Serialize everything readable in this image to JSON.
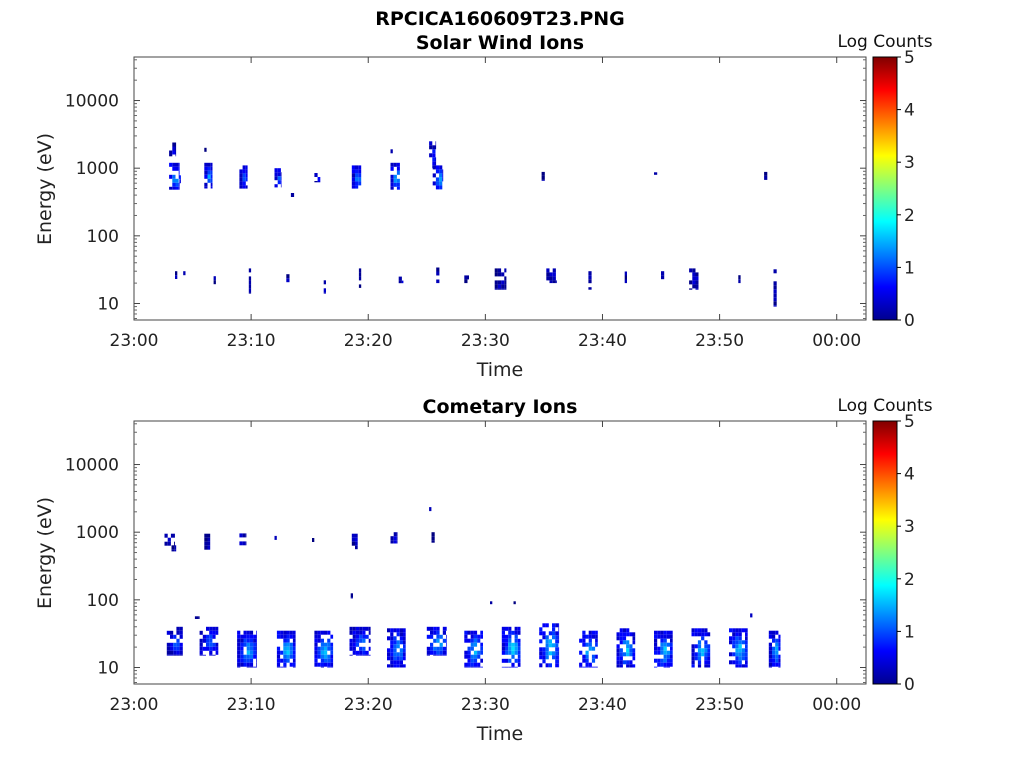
{
  "figure_title": "RPCICA160609T23.PNG",
  "chart_data": [
    {
      "type": "heatmap",
      "title": "Solar Wind Ions",
      "xlabel": "Time",
      "ylabel": "Energy (eV)",
      "yscale": "log",
      "xticks": [
        "23:00",
        "23:10",
        "23:20",
        "23:30",
        "23:40",
        "23:50",
        "00:00"
      ],
      "yticks": [
        "10",
        "100",
        "1000",
        "10000"
      ],
      "colorbar": {
        "label": "Log Counts",
        "range": [
          0,
          5
        ],
        "ticks": [
          "0",
          "1",
          "2",
          "3",
          "4",
          "5"
        ],
        "colormap": "jet"
      },
      "patches": [
        {
          "t": 3.0,
          "dt": 0.6,
          "e1": 1500,
          "e2": 2400,
          "v": 0.3
        },
        {
          "t": 3.0,
          "dt": 0.9,
          "e1": 480,
          "e2": 1200,
          "v": 1.3
        },
        {
          "t": 3.6,
          "dt": 0.4,
          "e1": 600,
          "e2": 900,
          "v": 0.8
        },
        {
          "t": 6.0,
          "dt": 0.7,
          "e1": 500,
          "e2": 1200,
          "v": 1.2
        },
        {
          "t": 6.0,
          "dt": 0.2,
          "e1": 1700,
          "e2": 2000,
          "v": 0.2
        },
        {
          "t": 9.0,
          "dt": 0.7,
          "e1": 500,
          "e2": 1100,
          "v": 1.0
        },
        {
          "t": 12.0,
          "dt": 0.6,
          "e1": 520,
          "e2": 1000,
          "v": 0.9
        },
        {
          "t": 13.4,
          "dt": 0.3,
          "e1": 370,
          "e2": 430,
          "v": 0.2
        },
        {
          "t": 15.4,
          "dt": 0.5,
          "e1": 620,
          "e2": 850,
          "v": 0.4
        },
        {
          "t": 18.6,
          "dt": 0.8,
          "e1": 500,
          "e2": 1100,
          "v": 1.1
        },
        {
          "t": 21.9,
          "dt": 0.8,
          "e1": 480,
          "e2": 1200,
          "v": 1.3
        },
        {
          "t": 21.9,
          "dt": 0.2,
          "e1": 1600,
          "e2": 1900,
          "v": 0.2
        },
        {
          "t": 25.2,
          "dt": 0.6,
          "e1": 1000,
          "e2": 2500,
          "v": 0.6
        },
        {
          "t": 25.5,
          "dt": 0.9,
          "e1": 480,
          "e2": 1100,
          "v": 1.2
        },
        {
          "t": 34.8,
          "dt": 0.3,
          "e1": 650,
          "e2": 880,
          "v": 0.2
        },
        {
          "t": 44.4,
          "dt": 0.4,
          "e1": 800,
          "e2": 870,
          "v": 0.2
        },
        {
          "t": 53.8,
          "dt": 0.3,
          "e1": 650,
          "e2": 880,
          "v": 0.2
        },
        {
          "t": 3.5,
          "dt": 0.2,
          "e1": 23,
          "e2": 30,
          "v": 0.3
        },
        {
          "t": 4.2,
          "dt": 0.2,
          "e1": 23,
          "e2": 30,
          "v": 0.3
        },
        {
          "t": 6.8,
          "dt": 0.2,
          "e1": 15,
          "e2": 29,
          "v": 0.3
        },
        {
          "t": 9.8,
          "dt": 0.2,
          "e1": 14,
          "e2": 33,
          "v": 0.3
        },
        {
          "t": 13.0,
          "dt": 0.3,
          "e1": 20,
          "e2": 31,
          "v": 0.3
        },
        {
          "t": 16.2,
          "dt": 0.2,
          "e1": 14,
          "e2": 22,
          "v": 0.3
        },
        {
          "t": 19.2,
          "dt": 0.2,
          "e1": 17,
          "e2": 33,
          "v": 0.3
        },
        {
          "t": 22.6,
          "dt": 0.4,
          "e1": 20,
          "e2": 25,
          "v": 0.3
        },
        {
          "t": 25.8,
          "dt": 0.3,
          "e1": 20,
          "e2": 34,
          "v": 0.3
        },
        {
          "t": 28.2,
          "dt": 0.4,
          "e1": 20,
          "e2": 26,
          "v": 0.3
        },
        {
          "t": 30.8,
          "dt": 1.0,
          "e1": 16,
          "e2": 33,
          "v": 0.3
        },
        {
          "t": 35.2,
          "dt": 0.9,
          "e1": 20,
          "e2": 33,
          "v": 0.3
        },
        {
          "t": 38.8,
          "dt": 0.3,
          "e1": 16,
          "e2": 30,
          "v": 0.3
        },
        {
          "t": 41.9,
          "dt": 0.2,
          "e1": 20,
          "e2": 34,
          "v": 0.3
        },
        {
          "t": 45.0,
          "dt": 0.3,
          "e1": 20,
          "e2": 30,
          "v": 0.3
        },
        {
          "t": 47.4,
          "dt": 0.8,
          "e1": 16,
          "e2": 33,
          "v": 0.3
        },
        {
          "t": 51.6,
          "dt": 0.2,
          "e1": 20,
          "e2": 30,
          "v": 0.3
        },
        {
          "t": 54.6,
          "dt": 0.3,
          "e1": 9,
          "e2": 32,
          "v": 0.3
        }
      ]
    },
    {
      "type": "heatmap",
      "title": "Cometary Ions",
      "xlabel": "Time",
      "ylabel": "Energy (eV)",
      "yscale": "log",
      "xticks": [
        "23:00",
        "23:10",
        "23:20",
        "23:30",
        "23:40",
        "23:50",
        "00:00"
      ],
      "yticks": [
        "10",
        "100",
        "1000",
        "10000"
      ],
      "colorbar": {
        "label": "Log Counts",
        "range": [
          0,
          5
        ],
        "ticks": [
          "0",
          "1",
          "2",
          "3",
          "4",
          "5"
        ],
        "colormap": "jet"
      },
      "patches": [
        {
          "t": 2.6,
          "dt": 0.9,
          "e1": 630,
          "e2": 950,
          "v": 0.4
        },
        {
          "t": 3.2,
          "dt": 0.4,
          "e1": 520,
          "e2": 640,
          "v": 0.2
        },
        {
          "t": 6.0,
          "dt": 0.5,
          "e1": 550,
          "e2": 950,
          "v": 0.3
        },
        {
          "t": 9.0,
          "dt": 0.6,
          "e1": 640,
          "e2": 960,
          "v": 0.5
        },
        {
          "t": 12.0,
          "dt": 0.2,
          "e1": 600,
          "e2": 880,
          "v": 0.2
        },
        {
          "t": 15.2,
          "dt": 0.2,
          "e1": 650,
          "e2": 820,
          "v": 0.2
        },
        {
          "t": 18.6,
          "dt": 0.5,
          "e1": 560,
          "e2": 950,
          "v": 0.4
        },
        {
          "t": 21.9,
          "dt": 0.6,
          "e1": 680,
          "e2": 1000,
          "v": 0.4
        },
        {
          "t": 25.2,
          "dt": 0.2,
          "e1": 2050,
          "e2": 2350,
          "v": 0.2
        },
        {
          "t": 25.4,
          "dt": 0.3,
          "e1": 700,
          "e2": 1000,
          "v": 0.2
        },
        {
          "t": 18.5,
          "dt": 0.2,
          "e1": 105,
          "e2": 125,
          "v": 0.2
        },
        {
          "t": 30.4,
          "dt": 0.2,
          "e1": 86,
          "e2": 95,
          "v": 0.2
        },
        {
          "t": 32.4,
          "dt": 0.2,
          "e1": 86,
          "e2": 95,
          "v": 0.2
        },
        {
          "t": 5.2,
          "dt": 0.4,
          "e1": 52,
          "e2": 57,
          "v": 0.2
        },
        {
          "t": 52.6,
          "dt": 0.2,
          "e1": 55,
          "e2": 63,
          "v": 0.3
        },
        {
          "t": 2.8,
          "dt": 1.4,
          "e1": 15,
          "e2": 40,
          "v": 0.8
        },
        {
          "t": 5.6,
          "dt": 1.6,
          "e1": 15,
          "e2": 40,
          "v": 0.9
        },
        {
          "t": 8.8,
          "dt": 1.7,
          "e1": 10,
          "e2": 35,
          "v": 1.2
        },
        {
          "t": 12.2,
          "dt": 1.6,
          "e1": 10,
          "e2": 35,
          "v": 1.3
        },
        {
          "t": 15.4,
          "dt": 1.6,
          "e1": 10,
          "e2": 35,
          "v": 1.3
        },
        {
          "t": 18.4,
          "dt": 1.8,
          "e1": 15,
          "e2": 40,
          "v": 1.0
        },
        {
          "t": 21.6,
          "dt": 1.6,
          "e1": 10,
          "e2": 38,
          "v": 1.1
        },
        {
          "t": 25.0,
          "dt": 1.7,
          "e1": 15,
          "e2": 40,
          "v": 1.3
        },
        {
          "t": 28.2,
          "dt": 1.6,
          "e1": 10,
          "e2": 35,
          "v": 1.3
        },
        {
          "t": 31.4,
          "dt": 1.6,
          "e1": 10,
          "e2": 40,
          "v": 1.4
        },
        {
          "t": 34.6,
          "dt": 1.7,
          "e1": 10,
          "e2": 45,
          "v": 1.4
        },
        {
          "t": 38.0,
          "dt": 1.6,
          "e1": 10,
          "e2": 35,
          "v": 1.3
        },
        {
          "t": 41.2,
          "dt": 1.6,
          "e1": 10,
          "e2": 38,
          "v": 1.3
        },
        {
          "t": 44.4,
          "dt": 1.6,
          "e1": 10,
          "e2": 35,
          "v": 1.3
        },
        {
          "t": 47.6,
          "dt": 1.6,
          "e1": 10,
          "e2": 38,
          "v": 1.3
        },
        {
          "t": 50.8,
          "dt": 1.6,
          "e1": 10,
          "e2": 38,
          "v": 1.3
        },
        {
          "t": 54.2,
          "dt": 1.0,
          "e1": 10,
          "e2": 35,
          "v": 1.2
        }
      ]
    }
  ]
}
